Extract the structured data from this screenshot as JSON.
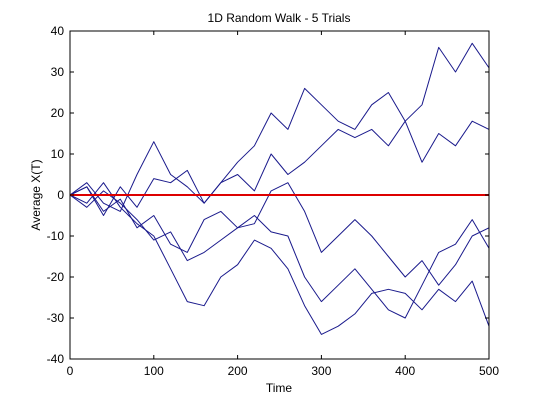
{
  "chart_data": {
    "type": "line",
    "title": "1D Random Walk - 5 Trials",
    "xlabel": "Time",
    "ylabel": "Average X(T)",
    "xlim": [
      0,
      500
    ],
    "ylim": [
      -40,
      40
    ],
    "xticks": [
      0,
      100,
      200,
      300,
      400,
      500
    ],
    "yticks": [
      -40,
      -30,
      -20,
      -10,
      0,
      10,
      20,
      30,
      40
    ],
    "grid": false,
    "legend": "none",
    "series": [
      {
        "color": "#1a1a8c",
        "x": [
          0,
          20,
          40,
          60,
          80,
          100,
          120,
          140,
          160,
          180,
          200,
          220,
          240,
          260,
          280,
          300,
          320,
          340,
          360,
          380,
          400,
          420,
          440,
          460,
          480,
          500
        ],
        "y": [
          0,
          3,
          -2,
          -4,
          5,
          13,
          5,
          2,
          -2,
          3,
          8,
          12,
          20,
          16,
          26,
          22,
          18,
          16,
          22,
          25,
          18,
          22,
          36,
          30,
          37,
          31
        ]
      },
      {
        "color": "#1a1a8c",
        "x": [
          0,
          20,
          40,
          60,
          80,
          100,
          120,
          140,
          160,
          180,
          200,
          220,
          240,
          260,
          280,
          300,
          320,
          340,
          360,
          380,
          400,
          420,
          440,
          460,
          480,
          500
        ],
        "y": [
          0,
          2,
          -5,
          2,
          -3,
          4,
          3,
          6,
          -2,
          3,
          5,
          1,
          10,
          5,
          8,
          12,
          16,
          14,
          16,
          12,
          18,
          8,
          15,
          12,
          18,
          16
        ]
      },
      {
        "color": "#1a1a8c",
        "x": [
          0,
          20,
          40,
          60,
          80,
          100,
          120,
          140,
          160,
          180,
          200,
          220,
          240,
          260,
          280,
          300,
          320,
          340,
          360,
          380,
          400,
          420,
          440,
          460,
          480,
          500
        ],
        "y": [
          0,
          -2,
          3,
          -3,
          -7,
          -10,
          -18,
          -26,
          -27,
          -20,
          -17,
          -11,
          -13,
          -18,
          -27,
          -34,
          -32,
          -29,
          -24,
          -23,
          -24,
          -28,
          -23,
          -26,
          -21,
          -32
        ]
      },
      {
        "color": "#1a1a8c",
        "x": [
          0,
          20,
          40,
          60,
          80,
          100,
          120,
          140,
          160,
          180,
          200,
          220,
          240,
          260,
          280,
          300,
          320,
          340,
          360,
          380,
          400,
          420,
          440,
          460,
          480,
          500
        ],
        "y": [
          0,
          -3,
          1,
          -2,
          -6,
          -11,
          -9,
          -16,
          -14,
          -11,
          -8,
          -5,
          -9,
          -10,
          -20,
          -26,
          -22,
          -18,
          -23,
          -28,
          -30,
          -22,
          -14,
          -12,
          -6,
          -13
        ]
      },
      {
        "color": "#1a1a8c",
        "x": [
          0,
          20,
          40,
          60,
          80,
          100,
          120,
          140,
          160,
          180,
          200,
          220,
          240,
          260,
          280,
          300,
          320,
          340,
          360,
          380,
          400,
          420,
          440,
          460,
          480,
          500
        ],
        "y": [
          0,
          2,
          -4,
          -1,
          -8,
          -5,
          -12,
          -14,
          -6,
          -4,
          -8,
          -7,
          1,
          3,
          -4,
          -14,
          -10,
          -6,
          -10,
          -15,
          -20,
          -16,
          -22,
          -17,
          -10,
          -8
        ]
      },
      {
        "color": "#dd0000",
        "x": [
          0,
          500
        ],
        "y": [
          0,
          0
        ]
      }
    ]
  }
}
